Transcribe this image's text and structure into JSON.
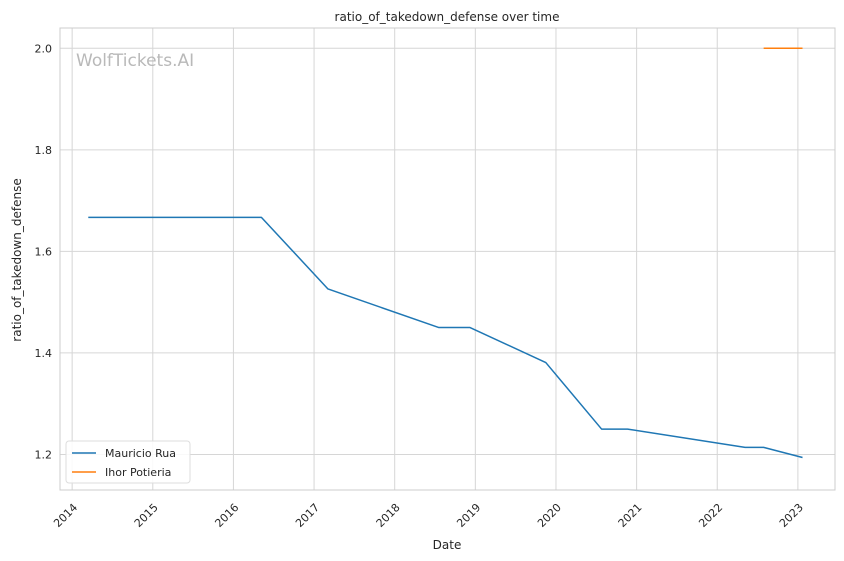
{
  "chart_data": {
    "type": "line",
    "title": "ratio_of_takedown_defense over time",
    "xlabel": "Date",
    "ylabel": "ratio_of_takedown_defense",
    "watermark": "WolfTickets.AI",
    "x_ticks": [
      "2014",
      "2015",
      "2016",
      "2017",
      "2018",
      "2019",
      "2020",
      "2021",
      "2022",
      "2023"
    ],
    "y_ticks": [
      "1.2",
      "1.4",
      "1.6",
      "1.8",
      "2.0"
    ],
    "xlim": [
      "2013-11-07",
      "2023-06-18"
    ],
    "ylim": [
      1.13,
      2.04
    ],
    "grid": true,
    "legend_position": "lower-left",
    "series": [
      {
        "name": "Mauricio Rua",
        "color": "#1f77b4",
        "points": [
          {
            "x": "2014-03-15",
            "y": 1.667
          },
          {
            "x": "2016-05-07",
            "y": 1.667
          },
          {
            "x": "2017-03-05",
            "y": 1.526
          },
          {
            "x": "2018-07-20",
            "y": 1.45
          },
          {
            "x": "2018-12-08",
            "y": 1.45
          },
          {
            "x": "2019-11-16",
            "y": 1.381
          },
          {
            "x": "2020-07-26",
            "y": 1.25
          },
          {
            "x": "2020-11-21",
            "y": 1.25
          },
          {
            "x": "2022-05-07",
            "y": 1.214
          },
          {
            "x": "2022-07-30",
            "y": 1.214
          },
          {
            "x": "2023-01-22",
            "y": 1.194
          }
        ]
      },
      {
        "name": "Ihor Potieria",
        "color": "#ff7f0e",
        "points": [
          {
            "x": "2022-07-30",
            "y": 2.0
          },
          {
            "x": "2023-01-22",
            "y": 2.0
          }
        ]
      }
    ]
  }
}
